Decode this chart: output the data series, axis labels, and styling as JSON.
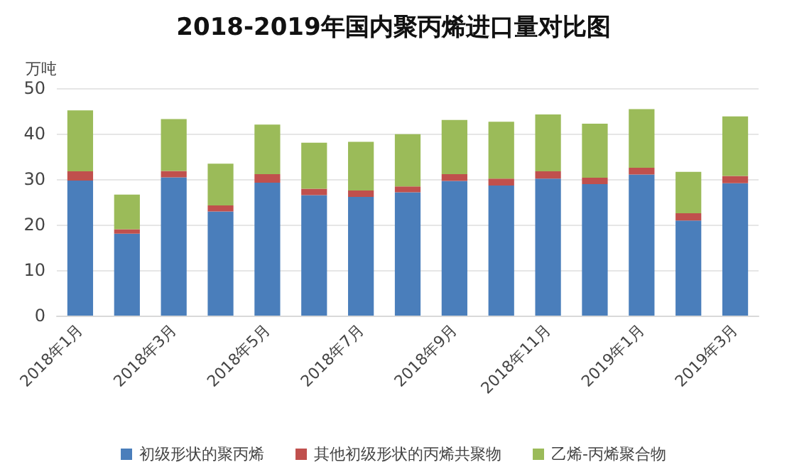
{
  "chart_data": {
    "type": "bar",
    "title": "2018-2019年国内聚丙烯进口量对比图",
    "ylabel": "万吨",
    "categories": [
      "2018年1月",
      null,
      "2018年3月",
      null,
      "2018年5月",
      null,
      "2018年7月",
      null,
      "2018年9月",
      null,
      "2018年11月",
      null,
      "2019年1月",
      null,
      "2019年3月"
    ],
    "series": [
      {
        "name": "初级形状的聚丙烯",
        "color": "#4a7ebb",
        "values": [
          29.7,
          18.0,
          30.4,
          22.9,
          29.2,
          26.5,
          26.1,
          27.1,
          29.6,
          28.6,
          30.1,
          28.9,
          31.0,
          20.9,
          29.1
        ]
      },
      {
        "name": "其他初级形状的丙烯共聚物",
        "color": "#c0504d",
        "values": [
          2.0,
          1.0,
          1.4,
          1.3,
          1.9,
          1.4,
          1.4,
          1.3,
          1.5,
          1.5,
          1.6,
          1.4,
          1.5,
          1.6,
          1.6
        ]
      },
      {
        "name": "乙烯-丙烯聚合物",
        "color": "#9bbb59",
        "values": [
          13.4,
          7.6,
          11.4,
          9.2,
          10.9,
          10.1,
          10.7,
          11.5,
          11.9,
          12.5,
          12.5,
          11.9,
          12.9,
          9.1,
          13.1
        ]
      }
    ],
    "stacked": true,
    "ylim": [
      0,
      50
    ],
    "yticks": [
      0,
      10,
      20,
      30,
      40,
      50
    ],
    "grid": "y",
    "legend": "bottom"
  }
}
